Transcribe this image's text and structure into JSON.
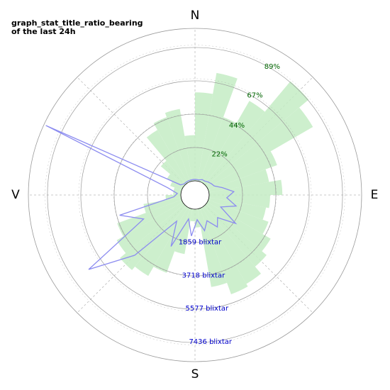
{
  "chart_data": {
    "type": "polar",
    "title": "graph_stat_title_ratio_bearing",
    "subtitle": "of the last 24h",
    "directions": [
      {
        "value": 0,
        "label": "N"
      },
      {
        "value": 90,
        "label": "E"
      },
      {
        "value": 180,
        "label": "S"
      },
      {
        "value": 270,
        "label": "V"
      }
    ],
    "x": [
      5,
      15,
      25,
      35,
      45,
      55,
      65,
      75,
      85,
      95,
      105,
      115,
      125,
      135,
      145,
      155,
      165,
      175,
      185,
      195,
      205,
      215,
      225,
      235,
      245,
      255,
      265,
      275,
      285,
      295,
      305,
      315,
      325,
      335,
      345,
      355
    ],
    "series": [
      {
        "color": "#c4ecc4",
        "axis": "r",
        "values": [
          58,
          72,
          45,
          62,
          88,
          80,
          48,
          40,
          48,
          40,
          38,
          42,
          48,
          52,
          58,
          60,
          52,
          12,
          8,
          30,
          45,
          52,
          55,
          50,
          45,
          25,
          10,
          5,
          5,
          8,
          12,
          20,
          40,
          45,
          48,
          30
        ]
      },
      {
        "color": "#8c8cf0",
        "axis": "r2",
        "values": [
          79,
          79,
          158,
          158,
          237,
          316,
          396,
          791,
          1384,
          989,
          1582,
          791,
          1978,
          989,
          1384,
          791,
          1266,
          593,
          1503,
          593,
          2373,
          989,
          3955,
          6447,
          2373,
          3560,
          396,
          198,
          791,
          8385,
          198,
          79,
          79,
          79,
          79,
          79
        ]
      }
    ],
    "rlim": [
      0,
      100
    ],
    "rticks": [
      {
        "value": 22,
        "label": "22%"
      },
      {
        "value": 44,
        "label": "44%"
      },
      {
        "value": 67,
        "label": "67%"
      },
      {
        "value": 89,
        "label": "89%"
      }
    ],
    "r2lim": [
      0,
      8500
    ],
    "r2ticks": [
      {
        "value": 1859,
        "label": "1859 blixtar"
      },
      {
        "value": 3718,
        "label": "3718 blixtar"
      },
      {
        "value": 5577,
        "label": "5577 blixtar"
      },
      {
        "value": 7436,
        "label": "7436 blixtar"
      }
    ],
    "grid": true
  }
}
